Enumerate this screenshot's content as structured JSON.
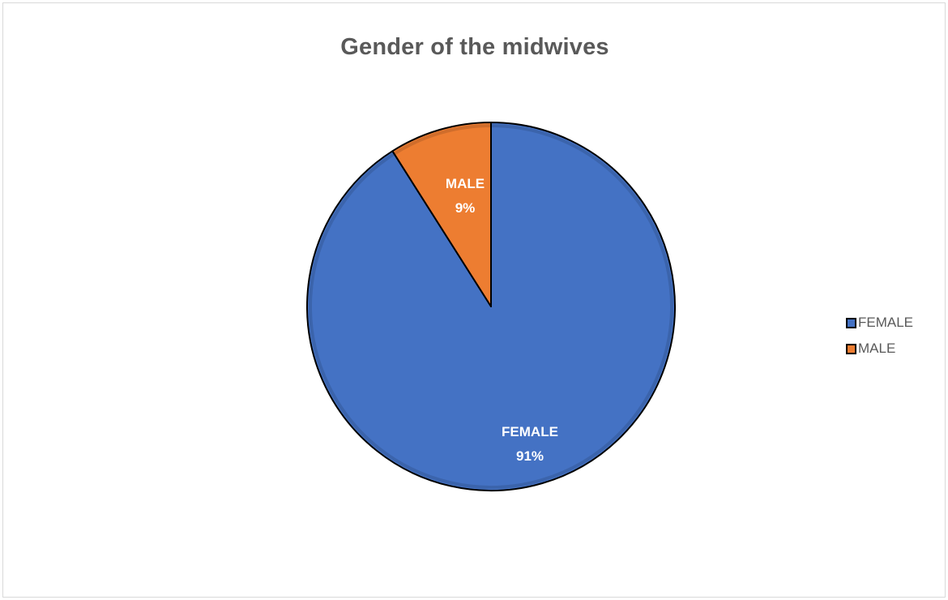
{
  "chart_data": {
    "type": "pie",
    "title": "Gender of the midwives",
    "categories": [
      "FEMALE",
      "MALE"
    ],
    "values": [
      91,
      9
    ],
    "value_labels": [
      "91%",
      "9%"
    ],
    "colors": [
      "#4472c4",
      "#ed7d31"
    ],
    "legend": {
      "position": "right",
      "entries": [
        "FEMALE",
        "MALE"
      ]
    }
  }
}
